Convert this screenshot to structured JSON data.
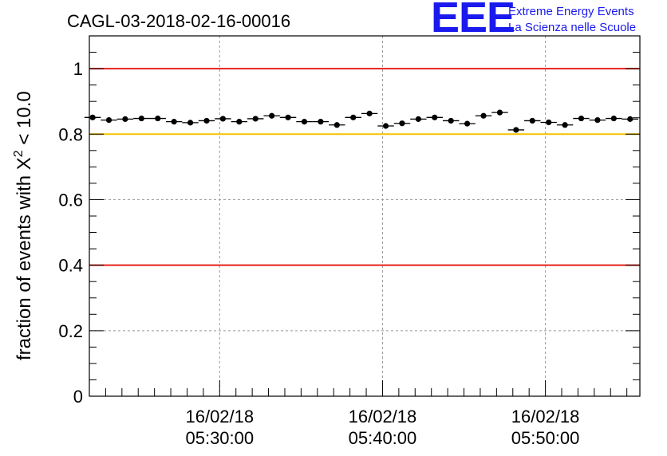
{
  "chart_data": {
    "type": "scatter",
    "title": "CAGL-03-2018-02-16-00016",
    "ylabel": "fraction of events with X^2 < 10.0",
    "ylabel_parts": {
      "main": "fraction of events with X",
      "sup": "2",
      "rest": " < 10.0"
    },
    "xlabel": "",
    "ylim": [
      0,
      1.1
    ],
    "y_ticks": [
      "0",
      "0.2",
      "0.4",
      "0.6",
      "0.8",
      "1"
    ],
    "x_ticks": [
      {
        "date": "16/02/18",
        "time": "05:30:00",
        "minutes": 30
      },
      {
        "date": "16/02/18",
        "time": "05:40:00",
        "minutes": 40
      },
      {
        "date": "16/02/18",
        "time": "05:50:00",
        "minutes": 50
      }
    ],
    "x_range_minutes": [
      22,
      55.8
    ],
    "grid": true,
    "reference_lines": [
      {
        "y": 1.0,
        "color": "#e8201a"
      },
      {
        "y": 0.8,
        "color": "#f5c400"
      },
      {
        "y": 0.4,
        "color": "#e8201a"
      }
    ],
    "series": [
      {
        "x": [
          22.2,
          23.2,
          24.2,
          25.2,
          26.2,
          27.2,
          28.2,
          29.2,
          30.2,
          31.2,
          32.2,
          33.2,
          34.2,
          35.2,
          36.2,
          37.2,
          38.2,
          39.2,
          40.2,
          41.2,
          42.2,
          43.2,
          44.2,
          45.2,
          46.2,
          47.2,
          48.2,
          49.2,
          50.2,
          51.2,
          52.2,
          53.2,
          54.2,
          55.2
        ],
        "values": [
          0.851,
          0.843,
          0.846,
          0.848,
          0.848,
          0.838,
          0.835,
          0.841,
          0.847,
          0.838,
          0.847,
          0.856,
          0.851,
          0.838,
          0.838,
          0.828,
          0.851,
          0.863,
          0.825,
          0.833,
          0.846,
          0.851,
          0.841,
          0.832,
          0.856,
          0.866,
          0.813,
          0.841,
          0.836,
          0.828,
          0.848,
          0.843,
          0.848,
          0.846
        ],
        "xerr_minutes": 0.5,
        "yerr": 0.004,
        "color": "#000000"
      }
    ]
  },
  "logo": {
    "mark": "EEE",
    "line1": "Extreme Energy Events",
    "line2": "La Scienza nelle Scuole",
    "color": "#1a1aee"
  }
}
